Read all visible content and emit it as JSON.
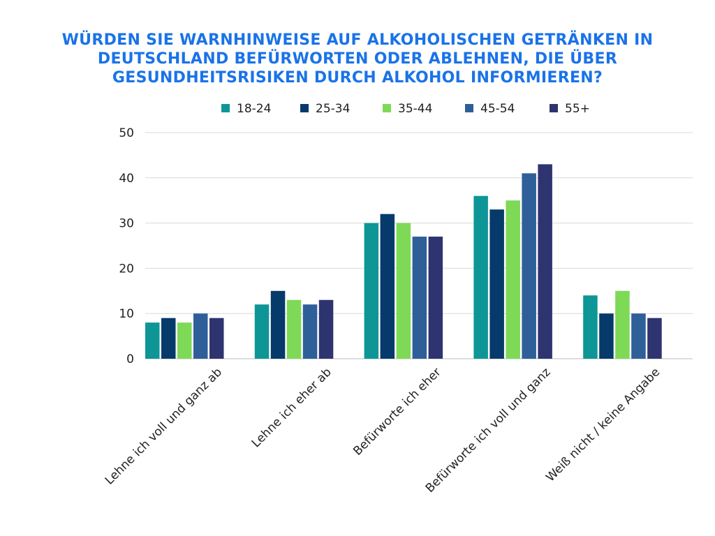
{
  "chart_data": {
    "type": "bar",
    "title": "Würden Sie Warnhinweise auf alkoholischen Getränken in Deutschland befürworten oder ablehnen, die über Gesundheitsrisiken durch Alkohol informieren?",
    "categories": [
      "Lehne ich voll und ganz ab",
      "Lehne ich eher ab",
      "Befürworte ich eher",
      "Befürworte ich voll und ganz",
      "Weiß nicht / keine Angabe"
    ],
    "series": [
      {
        "name": "18-24",
        "color": "#0e9696",
        "values": [
          8,
          12,
          30,
          36,
          14
        ]
      },
      {
        "name": "25-34",
        "color": "#063a6b",
        "values": [
          9,
          15,
          32,
          33,
          10
        ]
      },
      {
        "name": "35-44",
        "color": "#7ed957",
        "values": [
          8,
          13,
          30,
          35,
          15
        ]
      },
      {
        "name": "45-54",
        "color": "#2f5f99",
        "values": [
          10,
          12,
          27,
          41,
          10
        ]
      },
      {
        "name": "55+",
        "color": "#2e3470",
        "values": [
          9,
          13,
          27,
          43,
          9
        ]
      }
    ],
    "ylim": [
      0,
      50
    ],
    "yticks": [
      0,
      10,
      20,
      30,
      40,
      50
    ],
    "grid": true,
    "legend_position": "top",
    "xlabel": "",
    "ylabel": ""
  }
}
